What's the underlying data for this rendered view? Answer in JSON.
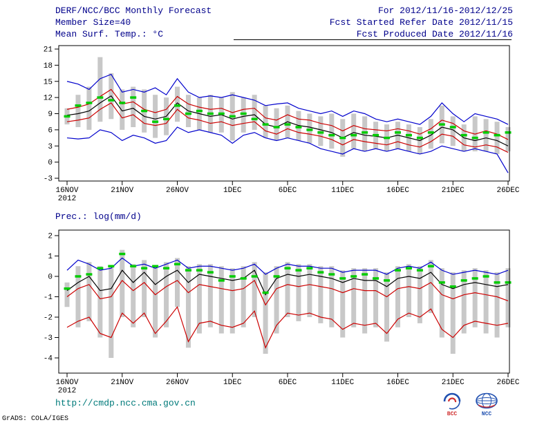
{
  "header": {
    "title": "DERF/NCC/BCC Monthly Forecast",
    "for_range": "For 2012/11/16-2012/12/25",
    "member_size": "Member Size=40",
    "refer_date": "Fcst Started Refer Date 2012/11/15",
    "produced_date": "Fcst Produced Date 2012/11/16"
  },
  "footer": {
    "url": "http://cmdp.ncc.cma.gov.cn",
    "credit": "GrADS: COLA/IGES",
    "logos": [
      {
        "label": "BCC"
      },
      {
        "label": "NCC"
      }
    ]
  },
  "colors": {
    "header_text": "#00008b",
    "envelope_line": "#0000cc",
    "std_line": "#cc0000",
    "mean_line": "#000000",
    "obs_dash": "#00cc00",
    "spread_bar": "#c8c8c8",
    "url_text": "#007a7a"
  },
  "chart_data": [
    {
      "name": "mean-surface-temperature",
      "type": "line",
      "title": "Mean Surf. Temp.: °C",
      "x_tick_labels": [
        "16NOV",
        "21NOV",
        "26NOV",
        "1DEC",
        "6DEC",
        "11DEC",
        "16DEC",
        "21DEC",
        "26DEC"
      ],
      "x_sub_label": "2012",
      "x_tick_interval_days": 5,
      "ylim": [
        -3,
        21
      ],
      "yticks": [
        -3,
        0,
        3,
        6,
        9,
        12,
        15,
        18,
        21
      ],
      "grid": false,
      "legend": false,
      "series": [
        {
          "name": "ensemble-max",
          "color": "blue",
          "values": [
            15.0,
            14.5,
            13.5,
            15.5,
            16.3,
            13.0,
            13.5,
            13.0,
            13.8,
            12.5,
            15.5,
            13.0,
            12.0,
            12.3,
            12.0,
            12.5,
            12.0,
            11.5,
            10.5,
            10.8,
            11.0,
            10.0,
            9.5,
            9.0,
            9.5,
            8.5,
            9.5,
            9.0,
            8.0,
            7.5,
            8.0,
            7.5,
            7.0,
            8.5,
            11.0,
            9.0,
            7.5,
            9.0,
            8.5,
            8.0,
            7.0
          ]
        },
        {
          "name": "upper-std",
          "color": "red",
          "values": [
            9.8,
            10.2,
            10.8,
            12.2,
            13.5,
            10.8,
            11.2,
            9.8,
            9.2,
            9.8,
            12.2,
            10.8,
            10.2,
            9.8,
            10.0,
            9.2,
            9.8,
            10.0,
            8.2,
            7.8,
            8.8,
            8.0,
            7.8,
            7.2,
            6.8,
            5.8,
            6.8,
            6.2,
            6.0,
            5.8,
            6.2,
            5.8,
            5.2,
            6.2,
            7.8,
            7.2,
            5.8,
            5.2,
            5.8,
            5.2,
            4.2
          ]
        },
        {
          "name": "ensemble-mean",
          "color": "black",
          "values": [
            8.7,
            9.0,
            9.5,
            11.0,
            12.3,
            9.5,
            10.0,
            8.5,
            8.0,
            8.5,
            11.0,
            9.5,
            9.0,
            8.5,
            8.8,
            8.0,
            8.5,
            8.8,
            7.0,
            6.5,
            7.5,
            6.8,
            6.5,
            6.0,
            5.5,
            4.5,
            5.5,
            5.0,
            4.8,
            4.5,
            5.0,
            4.5,
            4.0,
            5.0,
            6.5,
            6.0,
            4.5,
            4.0,
            4.5,
            4.0,
            3.0
          ]
        },
        {
          "name": "lower-std",
          "color": "red",
          "values": [
            7.5,
            7.8,
            8.2,
            9.8,
            11.0,
            8.2,
            8.8,
            7.2,
            6.8,
            7.2,
            9.8,
            8.2,
            7.8,
            7.2,
            7.5,
            6.8,
            7.2,
            7.5,
            5.8,
            5.2,
            6.2,
            5.5,
            5.2,
            4.8,
            4.2,
            3.2,
            4.2,
            3.8,
            3.5,
            3.2,
            3.8,
            3.2,
            2.8,
            3.8,
            5.2,
            4.8,
            3.2,
            2.8,
            3.2,
            2.8,
            1.8
          ]
        },
        {
          "name": "ensemble-min",
          "color": "blue",
          "values": [
            4.5,
            4.3,
            4.5,
            6.0,
            5.5,
            4.0,
            5.0,
            4.5,
            3.5,
            4.0,
            6.5,
            5.5,
            6.0,
            5.5,
            5.0,
            3.5,
            5.0,
            5.5,
            4.5,
            4.0,
            4.5,
            4.0,
            3.5,
            2.5,
            2.0,
            1.5,
            2.5,
            2.0,
            2.5,
            2.0,
            2.5,
            2.0,
            1.5,
            2.0,
            3.0,
            2.5,
            2.0,
            2.5,
            2.0,
            1.5,
            -2.0
          ]
        }
      ],
      "green_dashes": [
        8.5,
        10.5,
        11.0,
        12.0,
        11.5,
        11.0,
        12.0,
        9.5,
        7.5,
        8.0,
        10.5,
        9.0,
        9.5,
        9.0,
        9.0,
        8.5,
        9.0,
        8.0,
        7.0,
        6.5,
        7.0,
        6.5,
        6.0,
        5.5,
        5.0,
        4.5,
        5.0,
        5.5,
        5.0,
        4.5,
        5.5,
        5.0,
        4.5,
        5.5,
        7.0,
        6.5,
        5.0,
        4.5,
        5.5,
        5.0,
        5.5
      ],
      "bars": {
        "high": [
          10.0,
          12.5,
          14.0,
          19.5,
          16.5,
          13.5,
          14.0,
          13.5,
          12.5,
          12.0,
          14.0,
          12.5,
          12.0,
          12.5,
          12.0,
          13.0,
          12.0,
          12.5,
          10.5,
          10.0,
          10.5,
          9.5,
          9.0,
          8.5,
          9.0,
          8.0,
          9.0,
          8.5,
          7.5,
          7.0,
          7.5,
          7.0,
          6.5,
          8.0,
          10.5,
          8.5,
          7.0,
          8.5,
          8.0,
          7.5,
          6.5
        ],
        "low": [
          7.0,
          6.5,
          6.0,
          7.5,
          8.0,
          6.0,
          6.5,
          5.5,
          4.5,
          5.0,
          7.5,
          6.5,
          6.0,
          5.5,
          5.5,
          4.0,
          5.5,
          6.0,
          4.5,
          4.0,
          4.5,
          4.0,
          3.5,
          3.0,
          2.5,
          1.0,
          2.5,
          2.0,
          2.5,
          2.0,
          2.5,
          2.0,
          1.5,
          2.5,
          3.5,
          3.0,
          2.0,
          2.0,
          2.0,
          1.5,
          2.0
        ]
      }
    },
    {
      "name": "precipitation",
      "type": "line",
      "title": "Prec.: log(mm/d)",
      "x_tick_labels": [
        "16NOV",
        "21NOV",
        "26NOV",
        "1DEC",
        "6DEC",
        "11DEC",
        "16DEC",
        "21DEC",
        "26DEC"
      ],
      "x_sub_label": "2012",
      "x_tick_interval_days": 5,
      "ylim": [
        -4,
        2
      ],
      "yticks": [
        -4,
        -3,
        -2,
        -1,
        0,
        1,
        2
      ],
      "grid": false,
      "legend": false,
      "series": [
        {
          "name": "ensemble-max",
          "color": "blue",
          "values": [
            0.3,
            0.8,
            0.6,
            0.3,
            0.4,
            0.9,
            0.5,
            0.6,
            0.4,
            0.6,
            0.8,
            0.4,
            0.5,
            0.5,
            0.4,
            0.3,
            0.4,
            0.6,
            0.1,
            0.4,
            0.6,
            0.5,
            0.5,
            0.4,
            0.4,
            0.2,
            0.3,
            0.3,
            0.3,
            0.1,
            0.4,
            0.5,
            0.4,
            0.7,
            0.3,
            0.1,
            0.2,
            0.3,
            0.2,
            0.1,
            0.3
          ]
        },
        {
          "name": "ensemble-mean",
          "color": "black",
          "values": [
            -0.7,
            -0.3,
            0.0,
            -0.7,
            -0.6,
            0.3,
            -0.3,
            0.2,
            -0.4,
            0.0,
            0.3,
            -0.3,
            0.1,
            0.0,
            -0.1,
            -0.2,
            -0.1,
            0.3,
            -0.9,
            -0.1,
            0.1,
            0.0,
            0.1,
            0.0,
            -0.1,
            -0.3,
            -0.1,
            -0.2,
            -0.2,
            -0.5,
            -0.1,
            0.0,
            -0.1,
            0.2,
            -0.4,
            -0.6,
            -0.4,
            -0.3,
            -0.4,
            -0.5,
            -0.4
          ]
        },
        {
          "name": "upper-std",
          "color": "red",
          "values": [
            -1.0,
            -0.6,
            -0.4,
            -1.1,
            -1.0,
            -0.2,
            -0.7,
            -0.3,
            -0.9,
            -0.5,
            -0.2,
            -0.8,
            -0.4,
            -0.5,
            -0.6,
            -0.7,
            -0.6,
            -0.2,
            -1.4,
            -0.6,
            -0.4,
            -0.5,
            -0.4,
            -0.5,
            -0.6,
            -0.8,
            -0.6,
            -0.7,
            -0.7,
            -1.0,
            -0.6,
            -0.5,
            -0.6,
            -0.3,
            -0.9,
            -1.1,
            -0.9,
            -0.8,
            -0.9,
            -1.0,
            -1.2
          ]
        },
        {
          "name": "lower-std",
          "color": "red",
          "values": [
            -2.5,
            -2.2,
            -2.0,
            -2.8,
            -3.0,
            -1.8,
            -2.3,
            -1.8,
            -2.8,
            -2.2,
            -1.5,
            -3.2,
            -2.3,
            -2.2,
            -2.4,
            -2.5,
            -2.3,
            -1.7,
            -3.5,
            -2.4,
            -1.8,
            -1.9,
            -1.8,
            -2.0,
            -2.1,
            -2.6,
            -2.3,
            -2.4,
            -2.3,
            -2.8,
            -2.1,
            -1.8,
            -2.0,
            -1.6,
            -2.6,
            -3.0,
            -2.4,
            -2.2,
            -2.3,
            -2.4,
            -2.3
          ]
        }
      ],
      "green_dashes": [
        -0.6,
        0.0,
        0.1,
        0.4,
        0.5,
        1.1,
        0.5,
        0.4,
        0.5,
        0.4,
        0.6,
        0.3,
        0.3,
        0.2,
        -0.2,
        0.0,
        -0.1,
        0.0,
        -0.8,
        0.0,
        0.4,
        0.3,
        0.4,
        0.2,
        0.1,
        -0.1,
        0.0,
        0.1,
        -0.1,
        -0.2,
        0.3,
        0.4,
        0.3,
        0.5,
        -0.3,
        -0.5,
        -0.2,
        -0.1,
        0.0,
        -0.3,
        -0.3
      ],
      "bars": {
        "high": [
          -0.3,
          0.5,
          0.7,
          0.5,
          0.5,
          1.3,
          0.6,
          0.8,
          0.5,
          0.7,
          0.9,
          0.5,
          0.6,
          0.6,
          0.5,
          0.4,
          0.5,
          0.7,
          0.2,
          0.5,
          0.7,
          0.6,
          0.6,
          0.5,
          0.5,
          0.3,
          0.4,
          0.4,
          0.4,
          0.2,
          0.5,
          0.6,
          0.5,
          0.8,
          0.4,
          0.2,
          0.3,
          0.4,
          0.3,
          0.2,
          0.4
        ],
        "low": [
          -1.5,
          -2.5,
          -2.2,
          -3.0,
          -4.0,
          -2.0,
          -2.5,
          -2.0,
          -3.0,
          -2.5,
          -1.5,
          -3.5,
          -2.8,
          -2.5,
          -2.8,
          -2.8,
          -2.5,
          -2.0,
          -3.8,
          -2.8,
          -2.0,
          -2.2,
          -2.0,
          -2.3,
          -2.5,
          -3.0,
          -2.5,
          -2.8,
          -2.5,
          -3.2,
          -2.5,
          -2.0,
          -2.3,
          -1.8,
          -3.0,
          -3.8,
          -2.8,
          -2.5,
          -2.8,
          -3.0,
          -2.5
        ]
      }
    }
  ]
}
